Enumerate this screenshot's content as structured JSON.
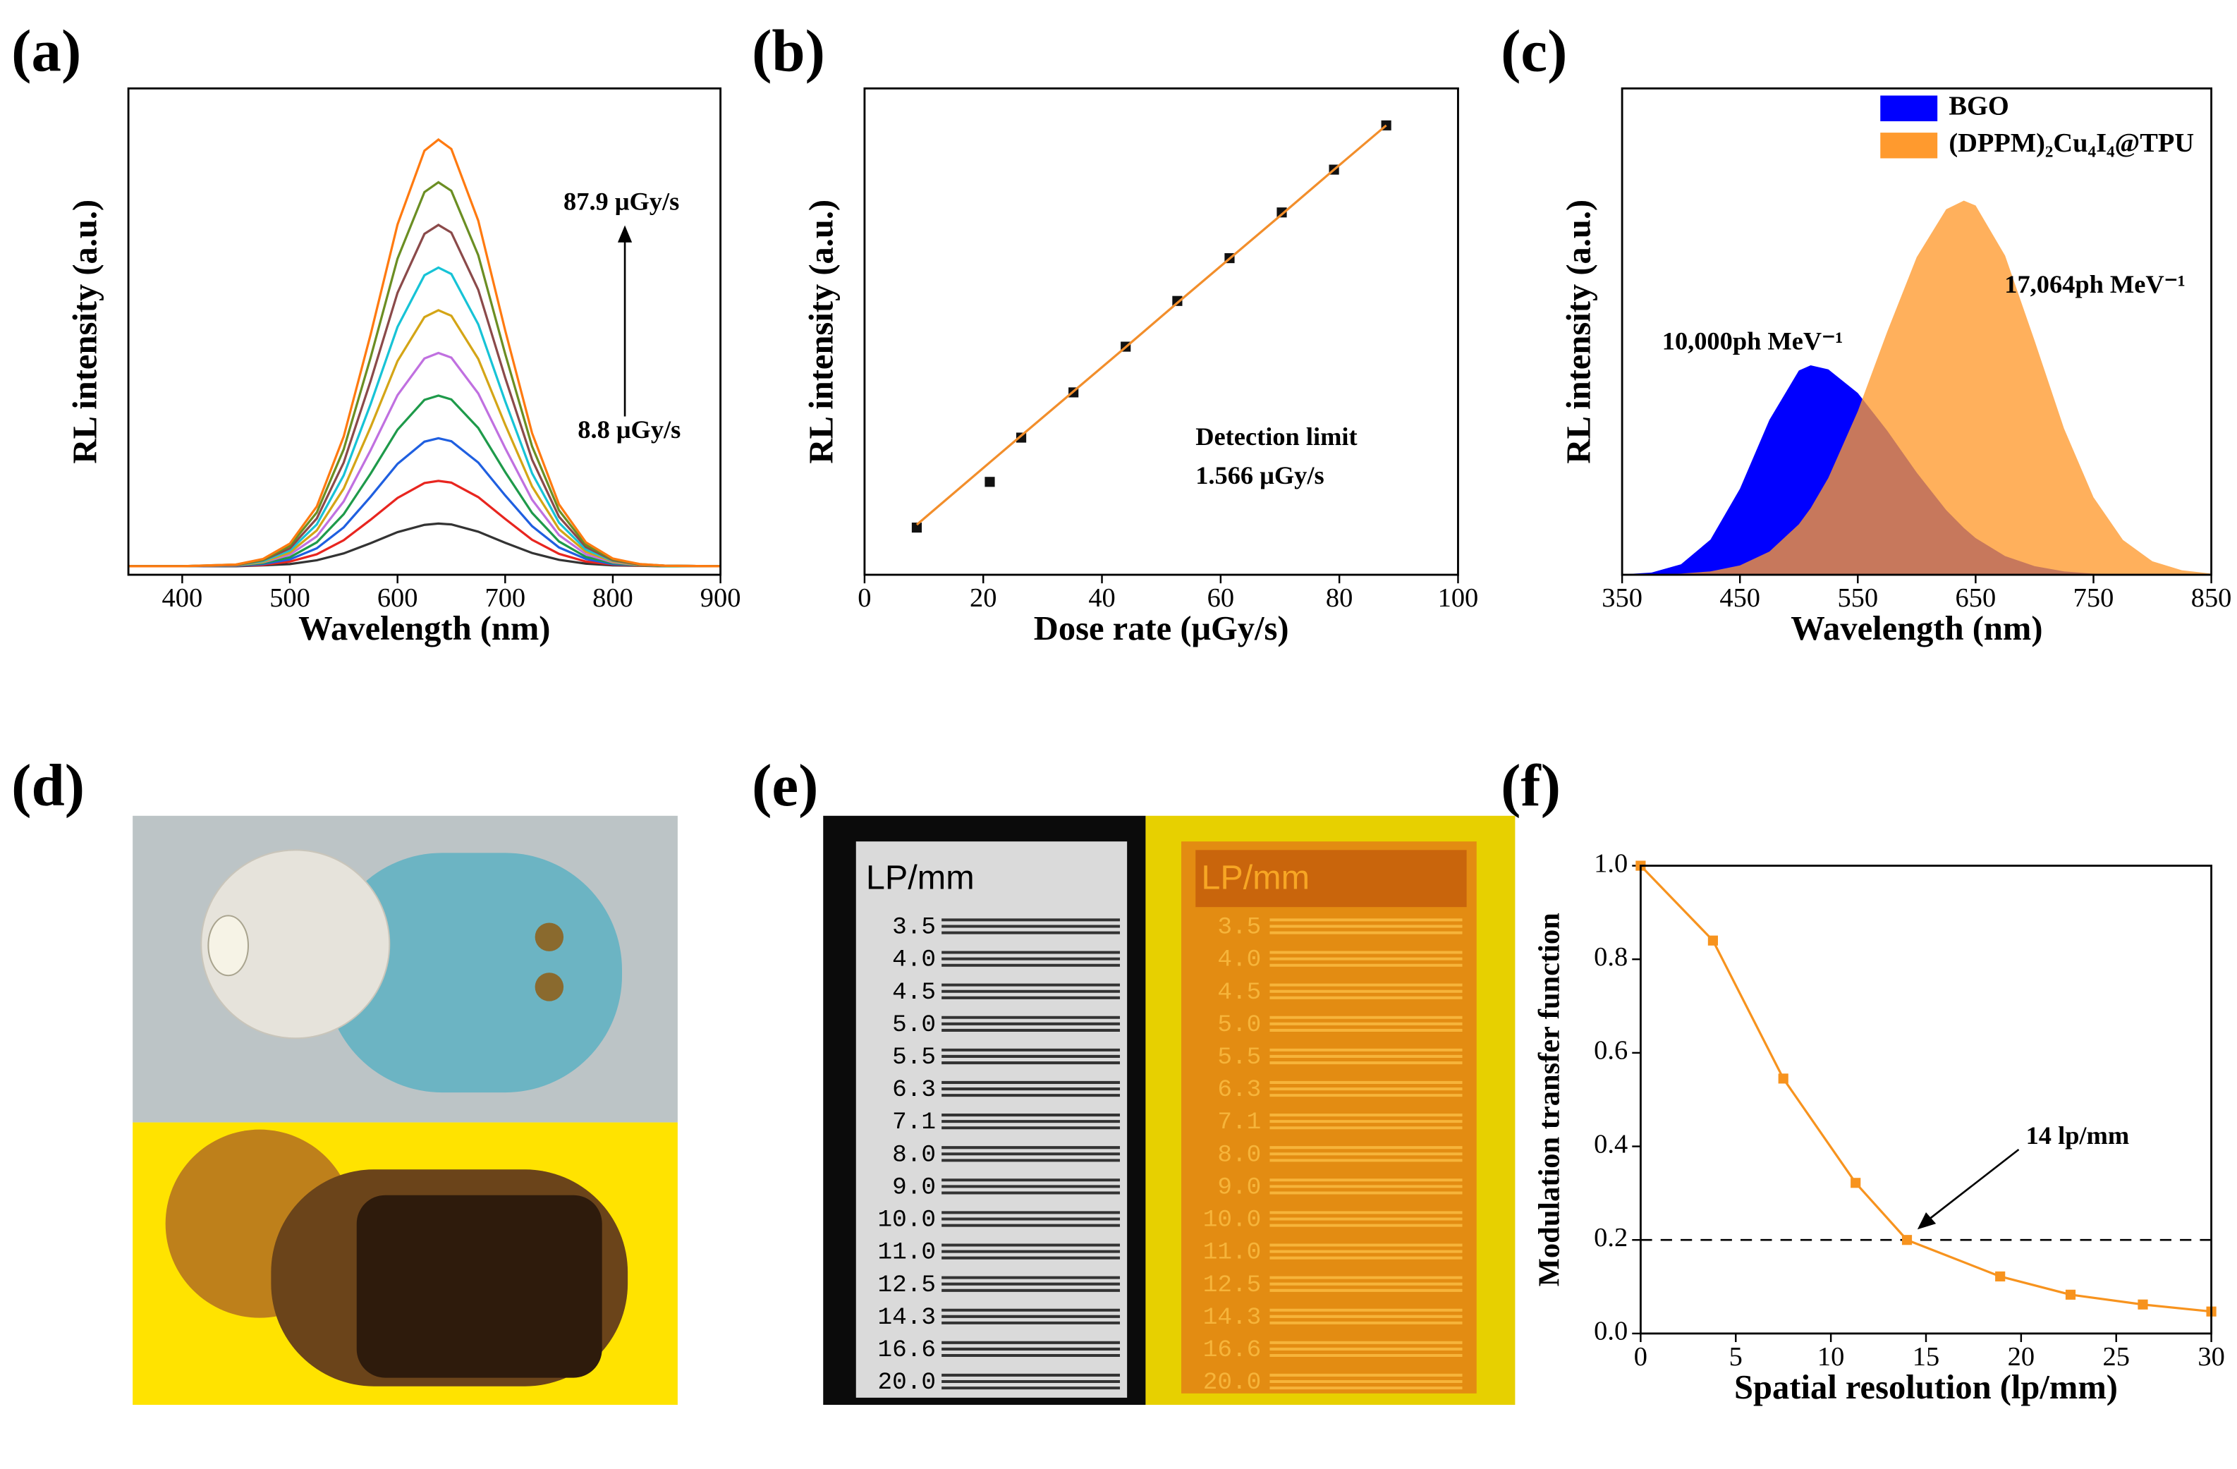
{
  "chart_data": [
    {
      "type": "line",
      "panel_label": "(a)",
      "x_label": "Wavelength (nm)",
      "y_label": "RL intensity (a.u.)",
      "x": [
        350,
        400,
        450,
        475,
        500,
        525,
        550,
        575,
        600,
        625,
        638,
        650,
        675,
        700,
        725,
        750,
        775,
        800,
        825,
        850,
        900
      ],
      "series": [
        {
          "color": "#333333",
          "values": [
            0.02,
            0.02,
            0.02,
            0.022,
            0.025,
            0.034,
            0.05,
            0.074,
            0.1,
            0.117,
            0.12,
            0.118,
            0.101,
            0.075,
            0.051,
            0.035,
            0.026,
            0.022,
            0.021,
            0.02,
            0.02
          ]
        },
        {
          "color": "#e8251f",
          "values": [
            0.02,
            0.02,
            0.021,
            0.023,
            0.031,
            0.048,
            0.081,
            0.129,
            0.18,
            0.215,
            0.22,
            0.216,
            0.182,
            0.131,
            0.082,
            0.049,
            0.031,
            0.024,
            0.021,
            0.02,
            0.02
          ]
        },
        {
          "color": "#1f5fe0",
          "values": [
            0.02,
            0.02,
            0.021,
            0.025,
            0.036,
            0.062,
            0.111,
            0.183,
            0.26,
            0.312,
            0.32,
            0.313,
            0.263,
            0.186,
            0.114,
            0.064,
            0.037,
            0.025,
            0.022,
            0.02,
            0.02
          ]
        },
        {
          "color": "#1e9a4a",
          "values": [
            0.02,
            0.02,
            0.022,
            0.027,
            0.041,
            0.076,
            0.142,
            0.237,
            0.34,
            0.41,
            0.42,
            0.411,
            0.344,
            0.241,
            0.145,
            0.078,
            0.042,
            0.027,
            0.022,
            0.02,
            0.02
          ]
        },
        {
          "color": "#c070e0",
          "values": [
            0.02,
            0.02,
            0.022,
            0.029,
            0.047,
            0.09,
            0.172,
            0.292,
            0.421,
            0.507,
            0.52,
            0.509,
            0.425,
            0.297,
            0.176,
            0.093,
            0.048,
            0.029,
            0.023,
            0.021,
            0.02
          ]
        },
        {
          "color": "#d4a516",
          "values": [
            0.02,
            0.02,
            0.022,
            0.03,
            0.052,
            0.104,
            0.202,
            0.346,
            0.501,
            0.604,
            0.62,
            0.607,
            0.506,
            0.352,
            0.207,
            0.107,
            0.054,
            0.031,
            0.023,
            0.021,
            0.02
          ]
        },
        {
          "color": "#17c3d6",
          "values": [
            0.02,
            0.02,
            0.023,
            0.032,
            0.057,
            0.118,
            0.233,
            0.4,
            0.581,
            0.702,
            0.72,
            0.705,
            0.587,
            0.407,
            0.238,
            0.122,
            0.059,
            0.033,
            0.024,
            0.021,
            0.02
          ]
        },
        {
          "color": "#8b4a4a",
          "values": [
            0.02,
            0.02,
            0.023,
            0.034,
            0.062,
            0.132,
            0.263,
            0.454,
            0.661,
            0.799,
            0.82,
            0.802,
            0.668,
            0.462,
            0.27,
            0.136,
            0.065,
            0.034,
            0.024,
            0.021,
            0.02
          ]
        },
        {
          "color": "#6b8e23",
          "values": [
            0.02,
            0.02,
            0.024,
            0.035,
            0.068,
            0.146,
            0.294,
            0.509,
            0.741,
            0.897,
            0.92,
            0.9,
            0.749,
            0.518,
            0.301,
            0.151,
            0.07,
            0.036,
            0.025,
            0.021,
            0.02
          ]
        },
        {
          "color": "#ff7a10",
          "values": [
            0.02,
            0.02,
            0.024,
            0.037,
            0.073,
            0.16,
            0.324,
            0.563,
            0.821,
            0.994,
            1.02,
            0.998,
            0.83,
            0.573,
            0.332,
            0.165,
            0.076,
            0.038,
            0.025,
            0.021,
            0.02
          ]
        }
      ],
      "xlim": [
        350,
        900
      ],
      "xticks": [
        400,
        500,
        600,
        700,
        800,
        900
      ],
      "ylim": [
        0,
        1.14
      ],
      "annotations": [
        "87.9 μGy/s",
        "8.8 μGy/s"
      ]
    },
    {
      "type": "scatter",
      "panel_label": "(b)",
      "x_label": "Dose rate (μGy/s)",
      "y_label": "RL intensity (a.u.)",
      "x": [
        8.8,
        21.1,
        26.4,
        35.2,
        44,
        52.7,
        61.5,
        70.3,
        79.1,
        87.9
      ],
      "series": [
        {
          "color": "#111111",
          "marker": "square",
          "values": [
            9.7,
            19.1,
            28.2,
            37.5,
            46.9,
            56.3,
            65.1,
            74.5,
            83.3,
            92.4
          ]
        },
        {
          "color": "#f28e2b",
          "mode": "line",
          "values": [
            10.3,
            23.1,
            28.6,
            37.7,
            46.8,
            55.9,
            65.0,
            74.1,
            83.3,
            92.4
          ]
        }
      ],
      "xlim": [
        0,
        100
      ],
      "xticks": [
        0,
        20,
        40,
        60,
        80,
        100
      ],
      "ylim": [
        0,
        100
      ],
      "annotations": [
        "Detection limit",
        "1.566 μGy/s"
      ]
    },
    {
      "type": "area",
      "panel_label": "(c)",
      "x_label": "Wavelength (nm)",
      "y_label": "RL intensity (a.u.)",
      "x": [
        350,
        375,
        400,
        425,
        450,
        475,
        500,
        510,
        525,
        550,
        575,
        600,
        625,
        640,
        650,
        675,
        700,
        725,
        750,
        775,
        800,
        825,
        850
      ],
      "series": [
        {
          "name": "BGO",
          "color": "#0000ff",
          "values": [
            0.001,
            0.006,
            0.028,
            0.094,
            0.23,
            0.414,
            0.546,
            0.56,
            0.549,
            0.486,
            0.385,
            0.273,
            0.173,
            0.125,
            0.098,
            0.05,
            0.023,
            0.009,
            0.003,
            0.001,
            0,
            0,
            0
          ]
        },
        {
          "name": "(DPPM)₂Cu₄I₄@TPU",
          "color": "#ff9a2e",
          "values": [
            0,
            0.001,
            0.003,
            0.009,
            0.025,
            0.062,
            0.135,
            0.178,
            0.259,
            0.437,
            0.65,
            0.849,
            0.977,
            1,
            0.987,
            0.853,
            0.626,
            0.391,
            0.207,
            0.093,
            0.036,
            0.012,
            0.003
          ]
        }
      ],
      "xlim": [
        350,
        850
      ],
      "xticks": [
        350,
        450,
        550,
        650,
        750,
        850
      ],
      "ylim": [
        0,
        1.3
      ],
      "legend": "top-right",
      "annotations": [
        "10,000ph MeV⁻¹",
        "17,064ph MeV⁻¹"
      ]
    },
    {
      "type": "line",
      "panel_label": "(f)",
      "x_label": "Spatial resolution (lp/mm)",
      "y_label": "Modulation transfer function",
      "x": [
        0,
        3.8,
        7.5,
        11.3,
        14,
        18.9,
        22.6,
        26.4,
        30
      ],
      "series": [
        {
          "color": "#f7931e",
          "marker": "square",
          "values": [
            1.0,
            0.84,
            0.545,
            0.322,
            0.2,
            0.122,
            0.083,
            0.062,
            0.047
          ]
        }
      ],
      "xlim": [
        0,
        30
      ],
      "xticks": [
        0,
        5,
        10,
        15,
        20,
        25,
        30
      ],
      "ylim": [
        0,
        1
      ],
      "yticks": [
        {
          "value": 0,
          "label": "0.0"
        },
        {
          "value": 0.2,
          "label": "0.2"
        },
        {
          "value": 0.4,
          "label": "0.4"
        },
        {
          "value": 0.6,
          "label": "0.6"
        },
        {
          "value": 0.8,
          "label": "0.8"
        },
        {
          "value": 1,
          "label": "1.0"
        }
      ],
      "hline": 0.2,
      "annotations": [
        "14 lp/mm"
      ]
    }
  ],
  "photos": {
    "d": {
      "label": "(d)"
    },
    "e": {
      "label": "(e)",
      "title": "LP/mm",
      "rows": [
        "3.5",
        "4.0",
        "4.5",
        "5.0",
        "5.5",
        "6.3",
        "7.1",
        "8.0",
        "9.0",
        "10.0",
        "11.0",
        "12.5",
        "14.3",
        "16.6",
        "20.0"
      ]
    }
  }
}
